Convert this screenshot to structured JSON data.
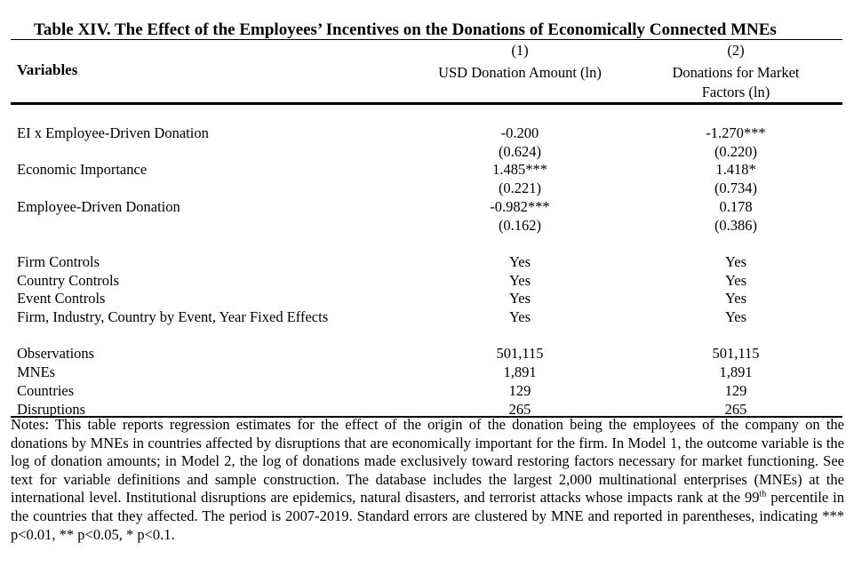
{
  "title": "Table XIV. The Effect of the Employees’ Incentives on the Donations of Economically Connected MNEs",
  "header": {
    "variables_label": "Variables",
    "col1_number": "(1)",
    "col1_name": "USD Donation Amount (ln)",
    "col2_number": "(2)",
    "col2_name_line1": "Donations for Market",
    "col2_name_line2": "Factors (ln)"
  },
  "coef_rows": [
    {
      "label": "EI x Employee-Driven Donation",
      "c1": "-0.200",
      "c1_se": "(0.624)",
      "c2": "-1.270***",
      "c2_se": "(0.220)"
    },
    {
      "label": "Economic Importance",
      "c1": "1.485***",
      "c1_se": "(0.221)",
      "c2": "1.418*",
      "c2_se": "(0.734)"
    },
    {
      "label": "Employee-Driven Donation",
      "c1": "-0.982***",
      "c1_se": "(0.162)",
      "c2": "0.178",
      "c2_se": "(0.386)"
    }
  ],
  "control_rows": [
    {
      "label": "Firm Controls",
      "c1": "Yes",
      "c2": "Yes"
    },
    {
      "label": "Country Controls",
      "c1": "Yes",
      "c2": "Yes"
    },
    {
      "label": "Event Controls",
      "c1": "Yes",
      "c2": "Yes"
    },
    {
      "label": "Firm, Industry, Country by Event, Year Fixed Effects",
      "c1": "Yes",
      "c2": "Yes"
    }
  ],
  "stat_rows": [
    {
      "label": "Observations",
      "c1": "501,115",
      "c2": "501,115"
    },
    {
      "label": "MNEs",
      "c1": "1,891",
      "c2": "1,891"
    },
    {
      "label": "Countries",
      "c1": "129",
      "c2": "129"
    },
    {
      "label": "Disruptions",
      "c1": "265",
      "c2": "265"
    }
  ],
  "notes": {
    "part1": "Notes: This table reports regression estimates for the effect of the origin of the donation being the employees of the company on the donations by MNEs in countries affected by disruptions that are economically important for the firm. In Model 1, the outcome variable is the log of donation amounts; in Model 2, the log of donations made exclusively toward restoring factors necessary for market functioning. See text for variable definitions and sample construction. The database includes the largest 2,000 multinational enterprises (MNEs) at the international level. Institutional disruptions are epidemics, natural disasters, and terrorist attacks whose impacts rank at the 99",
    "sup": "th",
    "part2": " percentile in the countries that they affected. The period is 2007-2019. Standard errors are clustered by MNE and reported in parentheses, indicating *** p<0.01, ** p<0.05, * p<0.1."
  }
}
